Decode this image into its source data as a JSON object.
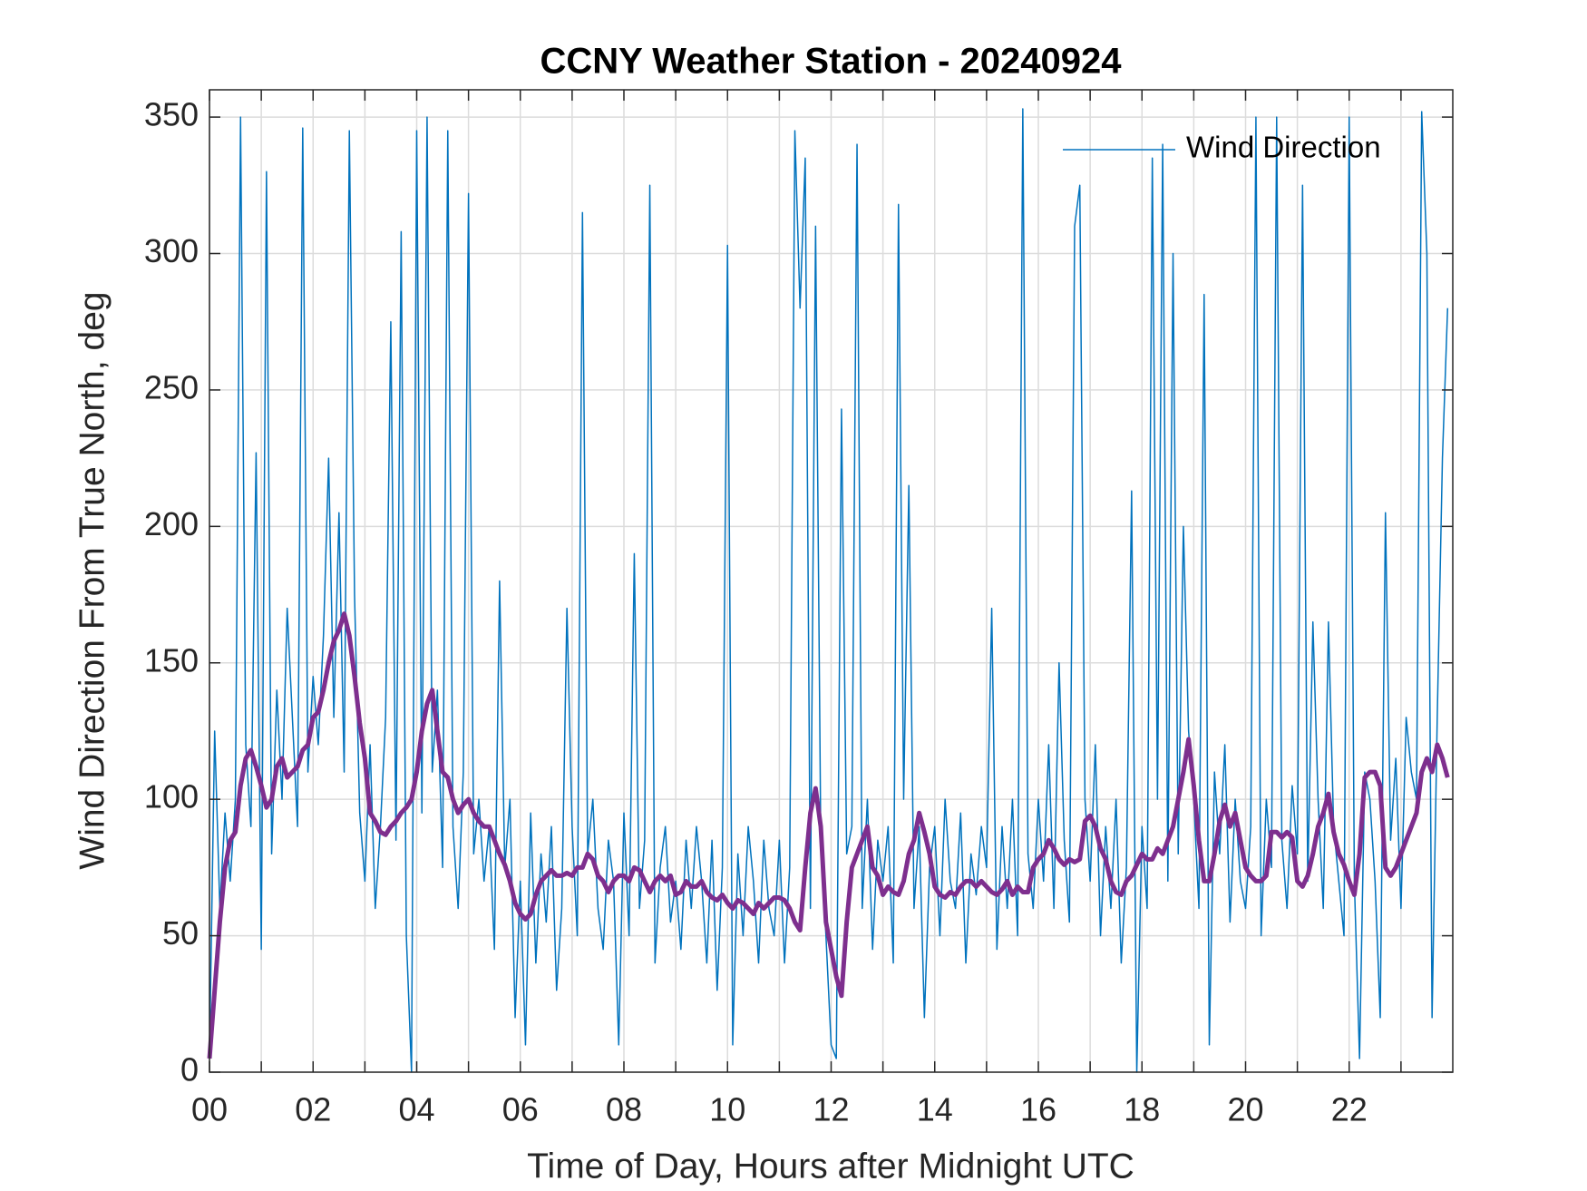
{
  "chart_data": {
    "type": "line",
    "title": "CCNY Weather Station - 20240924",
    "xlabel": "Time of Day, Hours after Midnight UTC",
    "ylabel": "Wind Direction From True North, deg",
    "xlim": [
      0,
      24
    ],
    "ylim": [
      0,
      360
    ],
    "xticks": [
      {
        "value": 0,
        "label": "00"
      },
      {
        "value": 2,
        "label": "02"
      },
      {
        "value": 4,
        "label": "04"
      },
      {
        "value": 6,
        "label": "06"
      },
      {
        "value": 8,
        "label": "08"
      },
      {
        "value": 10,
        "label": "10"
      },
      {
        "value": 12,
        "label": "12"
      },
      {
        "value": 14,
        "label": "14"
      },
      {
        "value": 16,
        "label": "16"
      },
      {
        "value": 18,
        "label": "18"
      },
      {
        "value": 20,
        "label": "20"
      },
      {
        "value": 22,
        "label": "22"
      }
    ],
    "xminorticks": [
      1,
      3,
      5,
      7,
      9,
      11,
      13,
      15,
      17,
      19,
      21,
      23
    ],
    "yticks": [
      0,
      50,
      100,
      150,
      200,
      250,
      300,
      350
    ],
    "grid": true,
    "legend": "northeast",
    "x": [
      0,
      0.1,
      0.2,
      0.3,
      0.4,
      0.5,
      0.6,
      0.7,
      0.8,
      0.9,
      1,
      1.1,
      1.2,
      1.3,
      1.4,
      1.5,
      1.6,
      1.7,
      1.8,
      1.9,
      2,
      2.1,
      2.2,
      2.3,
      2.4,
      2.5,
      2.6,
      2.7,
      2.8,
      2.9,
      3,
      3.1,
      3.2,
      3.3,
      3.4,
      3.5,
      3.6,
      3.7,
      3.8,
      3.9,
      4,
      4.1,
      4.2,
      4.3,
      4.4,
      4.5,
      4.6,
      4.7,
      4.8,
      4.9,
      5,
      5.1,
      5.2,
      5.3,
      5.4,
      5.5,
      5.6,
      5.7,
      5.8,
      5.9,
      6,
      6.1,
      6.2,
      6.3,
      6.4,
      6.5,
      6.6,
      6.7,
      6.8,
      6.9,
      7,
      7.1,
      7.2,
      7.3,
      7.4,
      7.5,
      7.6,
      7.7,
      7.8,
      7.9,
      8,
      8.1,
      8.2,
      8.3,
      8.4,
      8.5,
      8.6,
      8.7,
      8.8,
      8.9,
      9,
      9.1,
      9.2,
      9.3,
      9.4,
      9.5,
      9.6,
      9.7,
      9.8,
      9.9,
      10,
      10.1,
      10.2,
      10.3,
      10.4,
      10.5,
      10.6,
      10.7,
      10.8,
      10.9,
      11,
      11.1,
      11.2,
      11.3,
      11.4,
      11.5,
      11.6,
      11.7,
      11.8,
      11.9,
      12,
      12.1,
      12.2,
      12.3,
      12.4,
      12.5,
      12.6,
      12.7,
      12.8,
      12.9,
      13,
      13.1,
      13.2,
      13.3,
      13.4,
      13.5,
      13.6,
      13.7,
      13.8,
      13.9,
      14,
      14.1,
      14.2,
      14.3,
      14.4,
      14.5,
      14.6,
      14.7,
      14.8,
      14.9,
      15,
      15.1,
      15.2,
      15.3,
      15.4,
      15.5,
      15.6,
      15.7,
      15.8,
      15.9,
      16,
      16.1,
      16.2,
      16.3,
      16.4,
      16.5,
      16.6,
      16.7,
      16.8,
      16.9,
      17,
      17.1,
      17.2,
      17.3,
      17.4,
      17.5,
      17.6,
      17.7,
      17.8,
      17.9,
      18,
      18.1,
      18.2,
      18.3,
      18.4,
      18.5,
      18.6,
      18.7,
      18.8,
      18.9,
      19,
      19.1,
      19.2,
      19.3,
      19.4,
      19.5,
      19.6,
      19.7,
      19.8,
      19.9,
      20,
      20.1,
      20.2,
      20.3,
      20.4,
      20.5,
      20.6,
      20.7,
      20.8,
      20.9,
      21,
      21.1,
      21.2,
      21.3,
      21.4,
      21.5,
      21.6,
      21.7,
      21.8,
      21.9,
      22,
      22.1,
      22.2,
      22.3,
      22.4,
      22.5,
      22.6,
      22.7,
      22.8,
      22.9,
      23,
      23.1,
      23.2,
      23.3,
      23.4,
      23.5,
      23.6,
      23.7,
      23.8,
      23.9
    ],
    "series": [
      {
        "name": "Wind Direction",
        "color": "#0072bd",
        "width": 1.5,
        "values": [
          5,
          125,
          60,
          95,
          70,
          100,
          350,
          120,
          90,
          227,
          45,
          330,
          80,
          140,
          100,
          170,
          130,
          90,
          346,
          110,
          145,
          120,
          160,
          225,
          130,
          205,
          110,
          345,
          175,
          95,
          70,
          120,
          60,
          90,
          130,
          275,
          85,
          308,
          50,
          0,
          345,
          95,
          350,
          110,
          140,
          75,
          345,
          90,
          60,
          110,
          322,
          80,
          100,
          70,
          90,
          45,
          180,
          75,
          100,
          20,
          70,
          10,
          95,
          40,
          80,
          55,
          90,
          30,
          60,
          170,
          90,
          50,
          315,
          80,
          100,
          60,
          45,
          85,
          70,
          10,
          95,
          50,
          190,
          60,
          85,
          325,
          40,
          75,
          90,
          55,
          70,
          45,
          85,
          60,
          90,
          70,
          40,
          85,
          30,
          75,
          303,
          10,
          80,
          50,
          90,
          70,
          40,
          85,
          60,
          50,
          85,
          40,
          75,
          345,
          280,
          335,
          60,
          310,
          85,
          50,
          10,
          5,
          243,
          80,
          90,
          340,
          60,
          100,
          45,
          85,
          70,
          90,
          40,
          318,
          100,
          215,
          60,
          90,
          20,
          75,
          90,
          50,
          100,
          70,
          60,
          95,
          40,
          80,
          65,
          90,
          75,
          170,
          45,
          90,
          60,
          100,
          50,
          353,
          80,
          60,
          100,
          70,
          120,
          60,
          150,
          85,
          55,
          310,
          325,
          100,
          70,
          120,
          50,
          90,
          60,
          100,
          40,
          75,
          213,
          0,
          90,
          60,
          335,
          100,
          340,
          70,
          300,
          80,
          200,
          125,
          100,
          60,
          285,
          10,
          110,
          80,
          120,
          55,
          100,
          70,
          60,
          90,
          350,
          50,
          100,
          75,
          350,
          85,
          60,
          105,
          80,
          325,
          70,
          165,
          100,
          60,
          165,
          90,
          70,
          50,
          350,
          70,
          5,
          110,
          100,
          70,
          20,
          205,
          85,
          115,
          60,
          130,
          110,
          100,
          352,
          300,
          20,
          130,
          225,
          280
        ]
      },
      {
        "color": "#7e2f8e",
        "width": 5,
        "values": [
          5,
          30,
          55,
          75,
          85,
          88,
          105,
          115,
          118,
          112,
          105,
          97,
          100,
          112,
          115,
          108,
          110,
          112,
          118,
          120,
          130,
          132,
          140,
          150,
          158,
          162,
          168,
          160,
          145,
          128,
          115,
          95,
          92,
          88,
          87,
          90,
          92,
          95,
          97,
          100,
          110,
          125,
          135,
          140,
          125,
          110,
          108,
          100,
          95,
          98,
          100,
          95,
          92,
          90,
          90,
          85,
          80,
          76,
          70,
          62,
          58,
          56,
          58,
          65,
          70,
          72,
          74,
          72,
          72,
          73,
          72,
          75,
          75,
          80,
          78,
          72,
          70,
          66,
          70,
          72,
          72,
          70,
          75,
          74,
          70,
          66,
          70,
          72,
          70,
          72,
          65,
          66,
          70,
          68,
          68,
          70,
          66,
          64,
          63,
          65,
          62,
          60,
          63,
          62,
          60,
          58,
          62,
          60,
          62,
          64,
          64,
          63,
          60,
          55,
          52,
          75,
          95,
          104,
          90,
          55,
          45,
          35,
          28,
          55,
          75,
          80,
          85,
          90,
          75,
          72,
          65,
          68,
          66,
          65,
          70,
          80,
          85,
          95,
          88,
          80,
          68,
          65,
          64,
          66,
          65,
          68,
          70,
          70,
          68,
          70,
          68,
          66,
          65,
          67,
          70,
          65,
          68,
          66,
          66,
          75,
          78,
          80,
          85,
          82,
          78,
          76,
          78,
          77,
          78,
          92,
          94,
          90,
          82,
          78,
          70,
          66,
          65,
          70,
          72,
          76,
          80,
          78,
          78,
          82,
          80,
          85,
          90,
          100,
          110,
          122,
          105,
          85,
          70,
          70,
          80,
          92,
          98,
          90,
          95,
          85,
          75,
          72,
          70,
          70,
          72,
          88,
          88,
          86,
          88,
          86,
          70,
          68,
          72,
          80,
          90,
          95,
          102,
          88,
          80,
          76,
          70,
          65,
          80,
          108,
          110,
          110,
          105,
          75,
          72,
          75,
          80,
          85,
          90,
          95,
          110,
          115,
          110,
          120,
          115,
          108
        ]
      }
    ]
  }
}
